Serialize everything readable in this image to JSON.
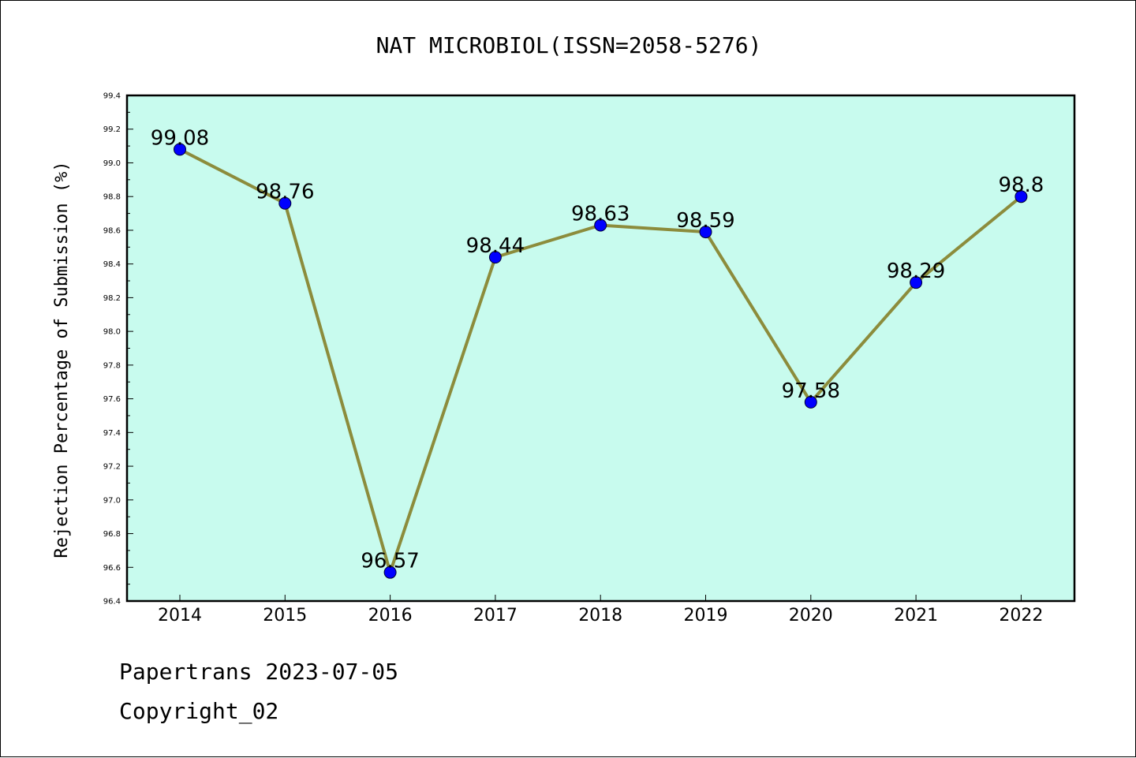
{
  "chart_data": {
    "type": "line",
    "title": "NAT MICROBIOL(ISSN=2058-5276)",
    "xlabel": "",
    "ylabel": "Rejection Percentage of Submission (%)",
    "categories": [
      "2014",
      "2015",
      "2016",
      "2017",
      "2018",
      "2019",
      "2020",
      "2021",
      "2022"
    ],
    "series": [
      {
        "values": [
          99.08,
          98.76,
          96.57,
          98.44,
          98.63,
          98.59,
          97.58,
          98.29,
          98.8
        ],
        "data_labels": [
          "99.08",
          "98.76",
          "96.57",
          "98.44",
          "98.63",
          "98.59",
          "97.58",
          "98.29",
          "98.8"
        ]
      }
    ],
    "ylim": [
      96.4,
      99.4
    ],
    "yticks": [
      "96.4",
      "96.6",
      "96.8",
      "97.0",
      "97.2",
      "97.4",
      "97.6",
      "97.8",
      "98.0",
      "98.2",
      "98.4",
      "98.6",
      "98.8",
      "99.0",
      "99.2",
      "99.4"
    ],
    "grid": false,
    "legend": "none",
    "colors": {
      "plot_background": "#c8fbee",
      "line": "#8c8c3c",
      "marker": "#0000ff"
    }
  },
  "footer": {
    "line1": "Papertrans 2023-07-05",
    "line2": "Copyright_02"
  }
}
